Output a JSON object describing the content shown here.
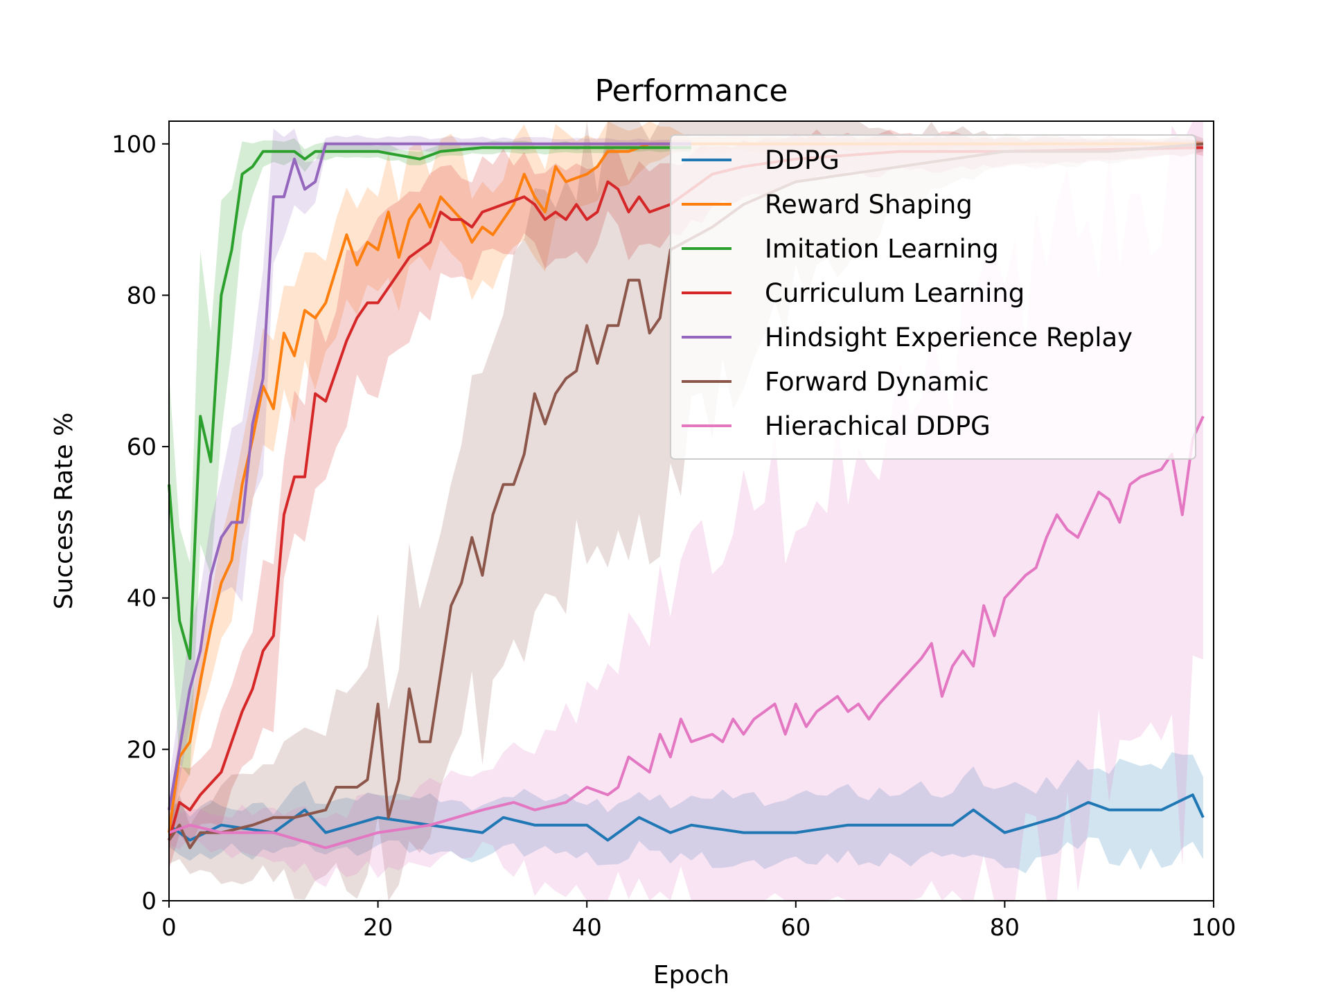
{
  "chart_data": {
    "type": "line",
    "title": "Performance",
    "xlabel": "Epoch",
    "ylabel": "Success Rate %",
    "xlim": [
      0,
      100
    ],
    "ylim": [
      0,
      103
    ],
    "xticks": [
      0,
      20,
      40,
      60,
      80,
      100
    ],
    "yticks": [
      0,
      20,
      40,
      60,
      80,
      100
    ],
    "grid": false,
    "legend_position": "top-right",
    "bands": "shaded min-max spread around each series",
    "series": [
      {
        "name": "DDPG",
        "color": "#1f77b4",
        "x_end": 99,
        "anchors": [
          [
            0,
            10
          ],
          [
            2,
            8
          ],
          [
            5,
            10
          ],
          [
            10,
            9
          ],
          [
            13,
            12
          ],
          [
            15,
            9
          ],
          [
            20,
            11
          ],
          [
            25,
            10
          ],
          [
            30,
            9
          ],
          [
            32,
            11
          ],
          [
            35,
            10
          ],
          [
            40,
            10
          ],
          [
            42,
            8
          ],
          [
            45,
            11
          ],
          [
            48,
            9
          ],
          [
            50,
            10
          ],
          [
            55,
            9
          ],
          [
            60,
            9
          ],
          [
            65,
            10
          ],
          [
            70,
            10
          ],
          [
            75,
            10
          ],
          [
            77,
            12
          ],
          [
            80,
            9
          ],
          [
            85,
            11
          ],
          [
            88,
            13
          ],
          [
            90,
            12
          ],
          [
            95,
            12
          ],
          [
            98,
            14
          ],
          [
            99,
            11
          ]
        ],
        "band": [
          [
            0,
            3
          ],
          [
            50,
            4
          ],
          [
            85,
            5
          ],
          [
            99,
            7
          ]
        ]
      },
      {
        "name": "Reward Shaping",
        "color": "#ff7f0e",
        "x_end": 99,
        "anchors": [
          [
            0,
            9
          ],
          [
            1,
            19
          ],
          [
            2,
            21
          ],
          [
            3,
            29
          ],
          [
            4,
            36
          ],
          [
            5,
            42
          ],
          [
            6,
            45
          ],
          [
            7,
            55
          ],
          [
            8,
            61
          ],
          [
            9,
            68
          ],
          [
            10,
            65
          ],
          [
            11,
            75
          ],
          [
            12,
            72
          ],
          [
            13,
            78
          ],
          [
            14,
            77
          ],
          [
            15,
            79
          ],
          [
            17,
            88
          ],
          [
            18,
            84
          ],
          [
            19,
            87
          ],
          [
            20,
            86
          ],
          [
            21,
            91
          ],
          [
            22,
            85
          ],
          [
            23,
            90
          ],
          [
            24,
            92
          ],
          [
            25,
            89
          ],
          [
            26,
            93
          ],
          [
            28,
            90
          ],
          [
            29,
            87
          ],
          [
            30,
            89
          ],
          [
            31,
            88
          ],
          [
            33,
            92
          ],
          [
            34,
            96
          ],
          [
            35,
            93
          ],
          [
            36,
            91
          ],
          [
            37,
            97
          ],
          [
            38,
            95
          ],
          [
            40,
            96
          ],
          [
            41,
            97
          ],
          [
            42,
            99
          ],
          [
            44,
            99
          ],
          [
            46,
            100
          ],
          [
            50,
            100
          ],
          [
            99,
            100
          ]
        ],
        "band": [
          [
            0,
            4
          ],
          [
            10,
            8
          ],
          [
            20,
            7
          ],
          [
            30,
            8
          ],
          [
            40,
            5
          ],
          [
            45,
            3
          ],
          [
            50,
            1
          ],
          [
            99,
            0.5
          ]
        ]
      },
      {
        "name": "Imitation Learning",
        "color": "#2ca02c",
        "x_end": 50,
        "anchors": [
          [
            0,
            55
          ],
          [
            1,
            37
          ],
          [
            2,
            32
          ],
          [
            3,
            64
          ],
          [
            4,
            58
          ],
          [
            5,
            80
          ],
          [
            6,
            86
          ],
          [
            7,
            96
          ],
          [
            8,
            97
          ],
          [
            9,
            99
          ],
          [
            12,
            99
          ],
          [
            13,
            98
          ],
          [
            14,
            99
          ],
          [
            20,
            99
          ],
          [
            24,
            98
          ],
          [
            26,
            99
          ],
          [
            30,
            99.5
          ],
          [
            50,
            99.5
          ]
        ],
        "band": [
          [
            0,
            15
          ],
          [
            3,
            18
          ],
          [
            5,
            15
          ],
          [
            7,
            6
          ],
          [
            9,
            2
          ],
          [
            15,
            1
          ],
          [
            50,
            0.5
          ]
        ]
      },
      {
        "name": "Curriculum Learning",
        "color": "#d62728",
        "x_end": 99,
        "anchors": [
          [
            0,
            8
          ],
          [
            1,
            13
          ],
          [
            2,
            12
          ],
          [
            3,
            14
          ],
          [
            5,
            17
          ],
          [
            6,
            21
          ],
          [
            7,
            25
          ],
          [
            8,
            28
          ],
          [
            9,
            33
          ],
          [
            10,
            35
          ],
          [
            11,
            51
          ],
          [
            12,
            56
          ],
          [
            13,
            56
          ],
          [
            14,
            67
          ],
          [
            15,
            66
          ],
          [
            17,
            74
          ],
          [
            18,
            77
          ],
          [
            19,
            79
          ],
          [
            20,
            79
          ],
          [
            22,
            83
          ],
          [
            23,
            85
          ],
          [
            24,
            86
          ],
          [
            25,
            87
          ],
          [
            26,
            91
          ],
          [
            27,
            90
          ],
          [
            28,
            90
          ],
          [
            29,
            89
          ],
          [
            30,
            91
          ],
          [
            32,
            92
          ],
          [
            34,
            93
          ],
          [
            35,
            92
          ],
          [
            36,
            90
          ],
          [
            37,
            91
          ],
          [
            38,
            90
          ],
          [
            39,
            92
          ],
          [
            40,
            90
          ],
          [
            41,
            91
          ],
          [
            42,
            95
          ],
          [
            43,
            94
          ],
          [
            44,
            91
          ],
          [
            45,
            93
          ],
          [
            46,
            91
          ],
          [
            48,
            92
          ],
          [
            52,
            96
          ],
          [
            55,
            97
          ],
          [
            60,
            98
          ],
          [
            70,
            99
          ],
          [
            80,
            99
          ],
          [
            99,
            99.5
          ]
        ],
        "band": [
          [
            0,
            3
          ],
          [
            10,
            10
          ],
          [
            20,
            10
          ],
          [
            30,
            6
          ],
          [
            45,
            5
          ],
          [
            60,
            3
          ],
          [
            80,
            2
          ],
          [
            99,
            1
          ]
        ]
      },
      {
        "name": "Hindsight Experience Replay",
        "color": "#9467bd",
        "x_end": 50,
        "anchors": [
          [
            0,
            12
          ],
          [
            1,
            20
          ],
          [
            2,
            28
          ],
          [
            3,
            33
          ],
          [
            4,
            43
          ],
          [
            5,
            48
          ],
          [
            6,
            50
          ],
          [
            7,
            50
          ],
          [
            8,
            63
          ],
          [
            9,
            69
          ],
          [
            10,
            93
          ],
          [
            11,
            93
          ],
          [
            12,
            98
          ],
          [
            13,
            94
          ],
          [
            14,
            95
          ],
          [
            15,
            100
          ],
          [
            50,
            100
          ]
        ],
        "band": [
          [
            0,
            4
          ],
          [
            5,
            10
          ],
          [
            9,
            12
          ],
          [
            12,
            5
          ],
          [
            15,
            1
          ],
          [
            50,
            0.5
          ]
        ]
      },
      {
        "name": "Forward Dynamic",
        "color": "#8c564b",
        "x_end": 99,
        "anchors": [
          [
            0,
            8
          ],
          [
            1,
            10
          ],
          [
            2,
            7
          ],
          [
            3,
            9
          ],
          [
            5,
            9
          ],
          [
            8,
            10
          ],
          [
            10,
            11
          ],
          [
            12,
            11
          ],
          [
            15,
            12
          ],
          [
            16,
            15
          ],
          [
            18,
            15
          ],
          [
            19,
            16
          ],
          [
            20,
            26
          ],
          [
            21,
            11
          ],
          [
            22,
            16
          ],
          [
            23,
            28
          ],
          [
            24,
            21
          ],
          [
            25,
            21
          ],
          [
            27,
            39
          ],
          [
            28,
            42
          ],
          [
            29,
            48
          ],
          [
            30,
            43
          ],
          [
            31,
            51
          ],
          [
            32,
            55
          ],
          [
            33,
            55
          ],
          [
            34,
            59
          ],
          [
            35,
            67
          ],
          [
            36,
            63
          ],
          [
            37,
            67
          ],
          [
            38,
            69
          ],
          [
            39,
            70
          ],
          [
            40,
            76
          ],
          [
            41,
            71
          ],
          [
            42,
            76
          ],
          [
            43,
            76
          ],
          [
            44,
            82
          ],
          [
            45,
            82
          ],
          [
            46,
            75
          ],
          [
            47,
            77
          ],
          [
            48,
            86
          ],
          [
            52,
            89
          ],
          [
            55,
            92
          ],
          [
            60,
            95
          ],
          [
            70,
            97
          ],
          [
            80,
            99
          ],
          [
            90,
            99
          ],
          [
            99,
            100
          ]
        ],
        "band": [
          [
            0,
            3
          ],
          [
            15,
            10
          ],
          [
            25,
            18
          ],
          [
            35,
            25
          ],
          [
            45,
            30
          ],
          [
            55,
            20
          ],
          [
            70,
            5
          ],
          [
            80,
            2
          ],
          [
            99,
            1
          ]
        ]
      },
      {
        "name": "Hierachical DDPG",
        "color": "#e377c2",
        "x_end": 99,
        "anchors": [
          [
            0,
            9
          ],
          [
            2,
            10
          ],
          [
            5,
            9
          ],
          [
            10,
            9
          ],
          [
            15,
            7
          ],
          [
            20,
            9
          ],
          [
            25,
            10
          ],
          [
            30,
            12
          ],
          [
            33,
            13
          ],
          [
            35,
            12
          ],
          [
            38,
            13
          ],
          [
            40,
            15
          ],
          [
            42,
            14
          ],
          [
            43,
            15
          ],
          [
            44,
            19
          ],
          [
            45,
            18
          ],
          [
            46,
            17
          ],
          [
            47,
            22
          ],
          [
            48,
            19
          ],
          [
            49,
            24
          ],
          [
            50,
            21
          ],
          [
            52,
            22
          ],
          [
            53,
            21
          ],
          [
            54,
            24
          ],
          [
            55,
            22
          ],
          [
            56,
            24
          ],
          [
            58,
            26
          ],
          [
            59,
            22
          ],
          [
            60,
            26
          ],
          [
            61,
            23
          ],
          [
            62,
            25
          ],
          [
            64,
            27
          ],
          [
            65,
            25
          ],
          [
            66,
            26
          ],
          [
            67,
            24
          ],
          [
            68,
            26
          ],
          [
            70,
            29
          ],
          [
            72,
            32
          ],
          [
            73,
            34
          ],
          [
            74,
            27
          ],
          [
            75,
            31
          ],
          [
            76,
            33
          ],
          [
            77,
            31
          ],
          [
            78,
            39
          ],
          [
            79,
            35
          ],
          [
            80,
            40
          ],
          [
            82,
            43
          ],
          [
            83,
            44
          ],
          [
            84,
            48
          ],
          [
            85,
            51
          ],
          [
            86,
            49
          ],
          [
            87,
            48
          ],
          [
            88,
            51
          ],
          [
            89,
            54
          ],
          [
            90,
            53
          ],
          [
            91,
            50
          ],
          [
            92,
            55
          ],
          [
            93,
            56
          ],
          [
            95,
            57
          ],
          [
            96,
            59
          ],
          [
            97,
            51
          ],
          [
            98,
            61
          ],
          [
            99,
            64
          ]
        ],
        "band": [
          [
            0,
            2
          ],
          [
            30,
            6
          ],
          [
            40,
            12
          ],
          [
            50,
            25
          ],
          [
            60,
            30
          ],
          [
            70,
            35
          ],
          [
            80,
            40
          ],
          [
            90,
            40
          ],
          [
            99,
            40
          ]
        ]
      }
    ]
  }
}
